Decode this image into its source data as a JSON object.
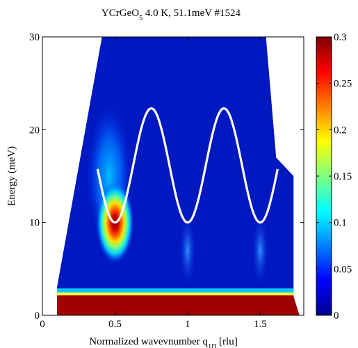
{
  "chart_data": {
    "type": "heatmap",
    "title_main": "YCrGeO",
    "title_sub": "5",
    "title_rest": " 4.0 K, 51.1meV #1524",
    "xlabel_main": "Normalized wavevnumber q",
    "xlabel_sub": "1D",
    "xlabel_rest": " [rlu]",
    "ylabel": "Energy (meV)",
    "xlim": [
      0,
      1.8
    ],
    "ylim": [
      0,
      30
    ],
    "xticks": [
      0,
      0.5,
      1,
      1.5
    ],
    "xtick_labels": [
      "0",
      "0.5",
      "1",
      "1.5"
    ],
    "yticks": [
      0,
      10,
      20,
      30
    ],
    "ytick_labels": [
      "0",
      "10",
      "20",
      "30"
    ],
    "colorbar": {
      "range": [
        0,
        0.3
      ],
      "ticks": [
        0,
        0.05,
        0.1,
        0.15,
        0.2,
        0.25,
        0.3
      ],
      "tick_labels": [
        "0",
        "0.05",
        "0.1",
        "0.15",
        "0.2",
        "0.25",
        "0.3"
      ],
      "colormap": "jet"
    },
    "coverage_boundary": [
      [
        0.1,
        0
      ],
      [
        0.1,
        3
      ],
      [
        0.41,
        30
      ],
      [
        1.54,
        30
      ],
      [
        1.61,
        17
      ],
      [
        1.73,
        15
      ],
      [
        1.73,
        2
      ],
      [
        1.77,
        0
      ]
    ],
    "features": [
      {
        "name": "elastic line",
        "x_range": [
          0.1,
          1.77
        ],
        "energy_range": [
          0,
          2
        ],
        "intensity": 0.3
      },
      {
        "name": "magnon peak",
        "center": [
          0.5,
          10
        ],
        "intensity": 0.3
      },
      {
        "name": "magnon branch",
        "center": [
          0.46,
          15
        ],
        "intensity": 0.1
      },
      {
        "name": "weak band",
        "center": [
          1.0,
          7
        ],
        "intensity": 0.05
      },
      {
        "name": "weak band",
        "center": [
          1.5,
          7
        ],
        "intensity": 0.06
      }
    ],
    "dispersion_curve": {
      "color": "#ffffff",
      "x_range": [
        0.38,
        1.62
      ],
      "minima_energy": 10,
      "maxima_energy": 22.3,
      "minima_x": [
        0.5,
        1.0,
        1.5
      ],
      "maxima_x": [
        0.75,
        1.25
      ]
    }
  }
}
